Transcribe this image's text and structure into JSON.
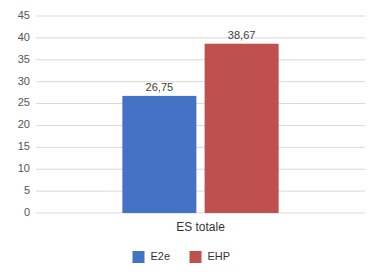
{
  "chart_data": {
    "type": "bar",
    "categories": [
      "ES totale"
    ],
    "series": [
      {
        "name": "E2e",
        "color": "#4472C4",
        "values": [
          26.75
        ],
        "value_labels": [
          "26,75"
        ]
      },
      {
        "name": "EHP",
        "color": "#C0504D",
        "values": [
          38.67
        ],
        "value_labels": [
          "38,67"
        ]
      }
    ],
    "ylim": [
      0,
      45
    ],
    "yticks": [
      0,
      5,
      10,
      15,
      20,
      25,
      30,
      35,
      40,
      45
    ],
    "grid": true,
    "legend": "bottom",
    "data_labels": true
  }
}
